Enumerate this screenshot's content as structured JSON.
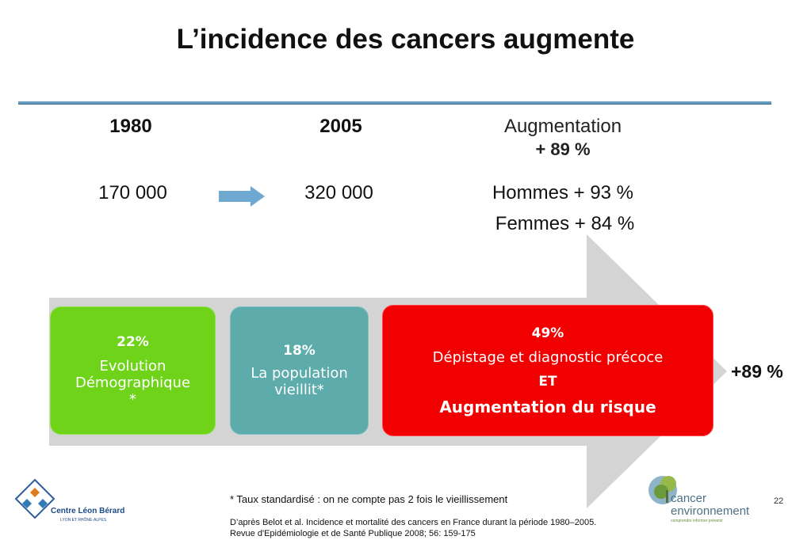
{
  "slide": {
    "title": "L’incidence des cancers augmente",
    "columns": {
      "year1": "1980",
      "year2": "2005",
      "increase_label": "Augmentation",
      "increase_value": "+ 89 %"
    },
    "values": {
      "cases_1980": "170 000",
      "cases_2005": "320 000",
      "men": "Hommes  + 93 %",
      "women": "Femmes + 84 %"
    },
    "boxes": {
      "demographic": {
        "percent": "22%",
        "line1": "Evolution",
        "line2": "Démographique",
        "line3": "*"
      },
      "aging": {
        "percent": "18%",
        "line1": "La population",
        "line2": "vieillit*"
      },
      "screening": {
        "percent": "49%",
        "line1": "Dépistage et diagnostic précoce",
        "line2": "ET",
        "line3": "Augmentation du risque"
      }
    },
    "result": "+89 %",
    "footnote": "* Taux standardisé : on ne compte pas 2 fois le vieillissement",
    "reference_line1": "D’après Belot et al. Incidence et mortalité des cancers en France durant la période 1980–2005.",
    "reference_line2": "Revue d'Epidémiologie et de Santé Publique 2008; 56: 159-175",
    "page_number": "22"
  },
  "logos": {
    "left": {
      "name": "Centre Léon Bérard",
      "subtitle": "LYON ET RHÔNE-ALPES"
    },
    "right": {
      "line1": "cancer",
      "line2": "environnement",
      "tagline": "comprendre informer prévenir"
    }
  },
  "colors": {
    "green_box": "#6fd31a",
    "teal_box": "#5dabab",
    "red_box": "#f00000",
    "big_arrow": "#d4d4d4",
    "small_arrow": "#6fa8d0",
    "rule": "#6a9fc2"
  },
  "icons": {
    "small_arrow": "right-arrow-icon",
    "big_arrow": "big-right-arrow-shape"
  }
}
